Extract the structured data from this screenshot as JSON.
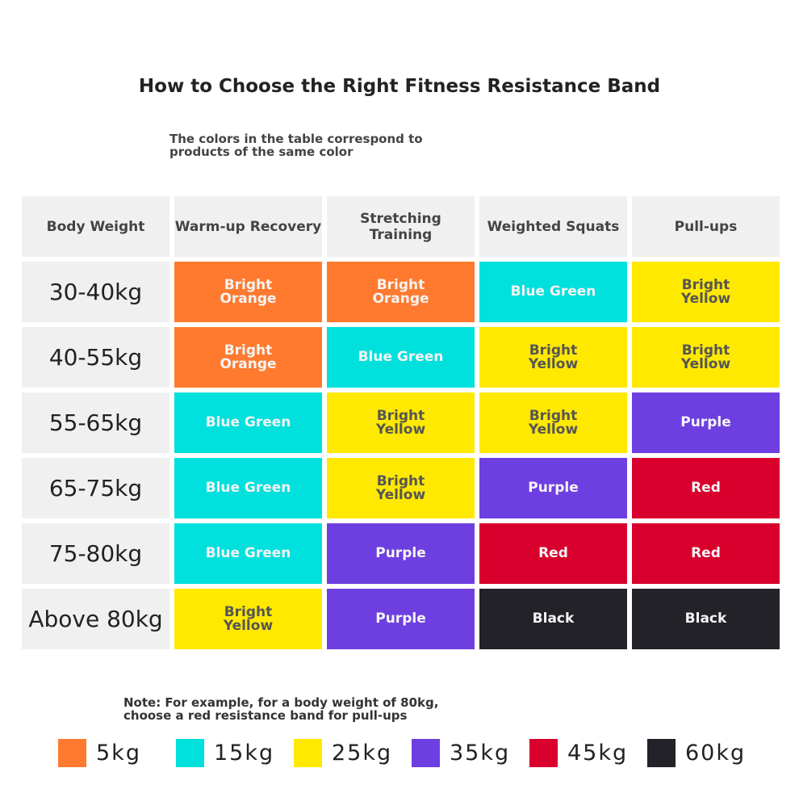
{
  "header": {
    "title": "How to Choose the Right Fitness Resistance Band",
    "subtitle": "The colors in the table correspond to products of the same color"
  },
  "table": {
    "columns": [
      "Body Weight",
      "Warm-up Recovery",
      "Stretching Training",
      "Weighted Squats",
      "Pull-ups"
    ],
    "rows": [
      {
        "weight": "30-40kg",
        "cells": [
          {
            "text": "Bright Orange",
            "color": "#ff7a2f"
          },
          {
            "text": "Bright Orange",
            "color": "#ff7a2f"
          },
          {
            "text": "Blue Green",
            "color": "#00e0dc"
          },
          {
            "text": "Bright Yellow",
            "color": "#ffe900"
          }
        ]
      },
      {
        "weight": "40-55kg",
        "cells": [
          {
            "text": "Bright Orange",
            "color": "#ff7a2f"
          },
          {
            "text": "Blue Green",
            "color": "#00e0dc"
          },
          {
            "text": "Bright Yellow",
            "color": "#ffe900"
          },
          {
            "text": "Bright Yellow",
            "color": "#ffe900"
          }
        ]
      },
      {
        "weight": "55-65kg",
        "cells": [
          {
            "text": "Blue Green",
            "color": "#00e0dc"
          },
          {
            "text": "Bright Yellow",
            "color": "#ffe900"
          },
          {
            "text": "Bright Yellow",
            "color": "#ffe900"
          },
          {
            "text": "Purple",
            "color": "#6e3fe0"
          }
        ]
      },
      {
        "weight": "65-75kg",
        "cells": [
          {
            "text": "Blue Green",
            "color": "#00e0dc"
          },
          {
            "text": "Bright Yellow",
            "color": "#ffe900"
          },
          {
            "text": "Purple",
            "color": "#6e3fe0"
          },
          {
            "text": "Red",
            "color": "#d9002e"
          }
        ]
      },
      {
        "weight": "75-80kg",
        "cells": [
          {
            "text": "Blue Green",
            "color": "#00e0dc"
          },
          {
            "text": "Purple",
            "color": "#6e3fe0"
          },
          {
            "text": "Red",
            "color": "#d9002e"
          },
          {
            "text": "Red",
            "color": "#d9002e"
          }
        ]
      },
      {
        "weight": "Above 80kg",
        "cells": [
          {
            "text": "Bright Yellow",
            "color": "#ffe900"
          },
          {
            "text": "Purple",
            "color": "#6e3fe0"
          },
          {
            "text": "Black",
            "color": "#232228"
          },
          {
            "text": "Black",
            "color": "#232228"
          }
        ]
      }
    ]
  },
  "note": "Note: For example, for a body weight of 80kg, choose a red resistance band for pull-ups",
  "legend": [
    {
      "label": "5kg",
      "color": "#ff7a2f"
    },
    {
      "label": "15kg",
      "color": "#00e0dc"
    },
    {
      "label": "25kg",
      "color": "#ffe900"
    },
    {
      "label": "35kg",
      "color": "#6e3fe0"
    },
    {
      "label": "45kg",
      "color": "#d9002e"
    },
    {
      "label": "60kg",
      "color": "#232228"
    }
  ]
}
